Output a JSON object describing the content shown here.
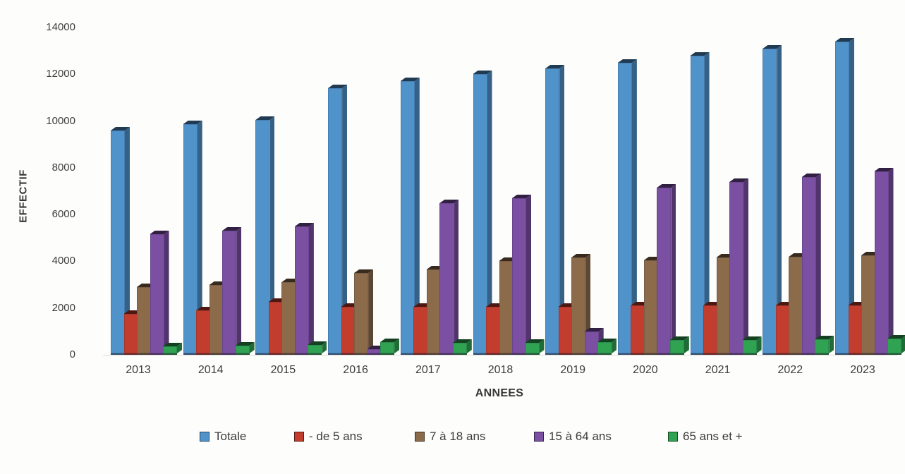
{
  "chart_data": {
    "type": "bar",
    "title": "",
    "xlabel": "ANNEES",
    "ylabel": "EFFECTIF",
    "categories": [
      "2013",
      "2014",
      "2015",
      "2016",
      "2017",
      "2018",
      "2019",
      "2020",
      "2021",
      "2022",
      "2023"
    ],
    "series": [
      {
        "name": "Totale",
        "color": "#5093cb",
        "values": [
          9600,
          9850,
          10050,
          11400,
          11700,
          12000,
          12250,
          12500,
          12800,
          13100,
          13400
        ]
      },
      {
        "name": "- de 5 ans",
        "color": "#c33d2e",
        "values": [
          1750,
          1900,
          2250,
          2050,
          2050,
          2050,
          2050,
          2100,
          2100,
          2100,
          2100
        ]
      },
      {
        "name": "7 à 18 ans",
        "color": "#8c6b4b",
        "values": [
          2900,
          3000,
          3100,
          3500,
          3650,
          4000,
          4150,
          4050,
          4150,
          4200,
          4250
        ]
      },
      {
        "name": "15 à 64 ans",
        "color": "#7b4fa2",
        "values": [
          5150,
          5300,
          5500,
          250,
          6500,
          6700,
          1000,
          7150,
          7400,
          7600,
          7850
        ]
      },
      {
        "name": "65 ans et +",
        "color": "#2fa352",
        "values": [
          350,
          400,
          420,
          550,
          500,
          520,
          550,
          620,
          620,
          650,
          700
        ]
      }
    ],
    "ylim": [
      0,
      14000
    ],
    "yticks": [
      0,
      2000,
      4000,
      6000,
      8000,
      10000,
      12000,
      14000
    ],
    "grid": false,
    "legend_position": "bottom"
  }
}
